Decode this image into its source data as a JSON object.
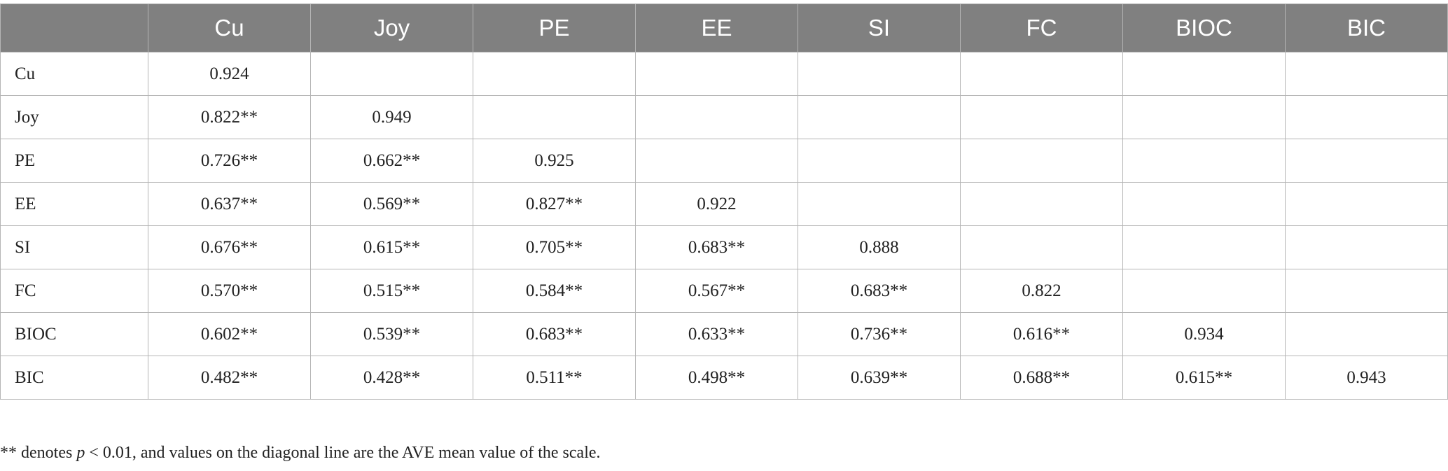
{
  "table": {
    "header": [
      "Cu",
      "Joy",
      "PE",
      "EE",
      "SI",
      "FC",
      "BIOC",
      "BIC"
    ],
    "rows": [
      {
        "label": "Cu",
        "cells": [
          "0.924"
        ]
      },
      {
        "label": "Joy",
        "cells": [
          "0.822**",
          "0.949"
        ]
      },
      {
        "label": "PE",
        "cells": [
          "0.726**",
          "0.662**",
          "0.925"
        ]
      },
      {
        "label": "EE",
        "cells": [
          "0.637**",
          "0.569**",
          "0.827**",
          "0.922"
        ]
      },
      {
        "label": "SI",
        "cells": [
          "0.676**",
          "0.615**",
          "0.705**",
          "0.683**",
          "0.888"
        ]
      },
      {
        "label": "FC",
        "cells": [
          "0.570**",
          "0.515**",
          "0.584**",
          "0.567**",
          "0.683**",
          "0.822"
        ]
      },
      {
        "label": "BIOC",
        "cells": [
          "0.602**",
          "0.539**",
          "0.683**",
          "0.633**",
          "0.736**",
          "0.616**",
          "0.934"
        ]
      },
      {
        "label": "BIC",
        "cells": [
          "0.482**",
          "0.428**",
          "0.511**",
          "0.498**",
          "0.639**",
          "0.688**",
          "0.615**",
          "0.943"
        ]
      }
    ]
  },
  "footnote": [
    "** denotes ",
    "p",
    " < 0.01, and values on the diagonal line are the AVE mean value of the scale."
  ]
}
